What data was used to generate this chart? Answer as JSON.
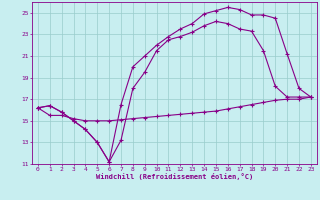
{
  "xlabel": "Windchill (Refroidissement éolien,°C)",
  "ylabel": "",
  "bg_color": "#c8eef0",
  "line_color": "#880088",
  "grid_color": "#99cccc",
  "xlim": [
    -0.5,
    23.5
  ],
  "ylim": [
    11,
    26
  ],
  "yticks": [
    11,
    13,
    15,
    17,
    19,
    21,
    23,
    25
  ],
  "xticks": [
    0,
    1,
    2,
    3,
    4,
    5,
    6,
    7,
    8,
    9,
    10,
    11,
    12,
    13,
    14,
    15,
    16,
    17,
    18,
    19,
    20,
    21,
    22,
    23
  ],
  "line1_x": [
    0,
    1,
    2,
    3,
    4,
    5,
    6,
    7,
    8,
    9,
    10,
    11,
    12,
    13,
    14,
    15,
    16,
    17,
    18,
    19,
    20,
    21,
    22,
    23
  ],
  "line1_y": [
    16.2,
    16.4,
    15.8,
    15.0,
    14.2,
    13.0,
    11.2,
    13.2,
    18.0,
    19.5,
    21.5,
    22.5,
    22.8,
    23.2,
    23.8,
    24.2,
    24.0,
    23.5,
    23.3,
    21.5,
    18.2,
    17.2,
    17.2,
    17.2
  ],
  "line2_x": [
    0,
    1,
    2,
    3,
    4,
    5,
    6,
    7,
    8,
    9,
    10,
    11,
    12,
    13,
    14,
    15,
    16,
    17,
    18,
    19,
    20,
    21,
    22,
    23
  ],
  "line2_y": [
    16.2,
    16.4,
    15.8,
    15.0,
    14.2,
    13.0,
    11.2,
    16.5,
    20.0,
    21.0,
    22.0,
    22.8,
    23.5,
    24.0,
    24.9,
    25.2,
    25.5,
    25.3,
    24.8,
    24.8,
    24.5,
    21.2,
    18.0,
    17.2
  ],
  "line3_x": [
    0,
    1,
    2,
    3,
    4,
    5,
    6,
    7,
    8,
    9,
    10,
    11,
    12,
    13,
    14,
    15,
    16,
    17,
    18,
    19,
    20,
    21,
    22,
    23
  ],
  "line3_y": [
    16.2,
    15.5,
    15.5,
    15.2,
    15.0,
    15.0,
    15.0,
    15.1,
    15.2,
    15.3,
    15.4,
    15.5,
    15.6,
    15.7,
    15.8,
    15.9,
    16.1,
    16.3,
    16.5,
    16.7,
    16.9,
    17.0,
    17.0,
    17.2
  ]
}
